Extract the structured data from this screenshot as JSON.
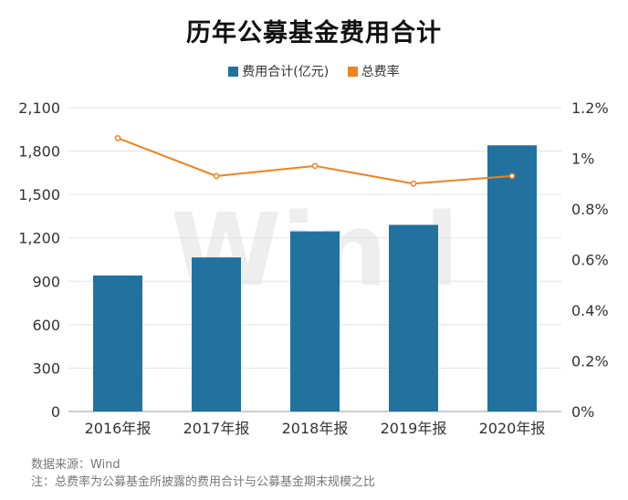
{
  "chart_data": {
    "type": "bar",
    "title": "历年公募基金费用合计",
    "categories": [
      "2016年报",
      "2017年报",
      "2018年报",
      "2019年报",
      "2020年报"
    ],
    "series": [
      {
        "name": "费用合计(亿元)",
        "type": "bar",
        "axis": "left",
        "color": "#2272a0",
        "values": [
          940,
          1065,
          1245,
          1290,
          1840
        ]
      },
      {
        "name": "总费率",
        "type": "line",
        "axis": "right",
        "color": "#f0821e",
        "values": [
          1.08,
          0.93,
          0.97,
          0.9,
          0.93
        ]
      }
    ],
    "ylim_left": [
      0,
      2100
    ],
    "yticks_left": [
      "0",
      "300",
      "600",
      "900",
      "1,200",
      "1,500",
      "1,800",
      "2,100"
    ],
    "ylim_right": [
      0,
      1.2
    ],
    "yticks_right": [
      "0%",
      "0.2%",
      "0.4%",
      "0.6%",
      "0.8%",
      "1%",
      "1.2%"
    ],
    "grid": true,
    "legend_position": "top-center",
    "watermark": "Wind"
  },
  "footer": {
    "source": "数据来源：Wind",
    "note": "注：总费率为公募基金所披露的费用合计与公募基金期末规模之比"
  }
}
